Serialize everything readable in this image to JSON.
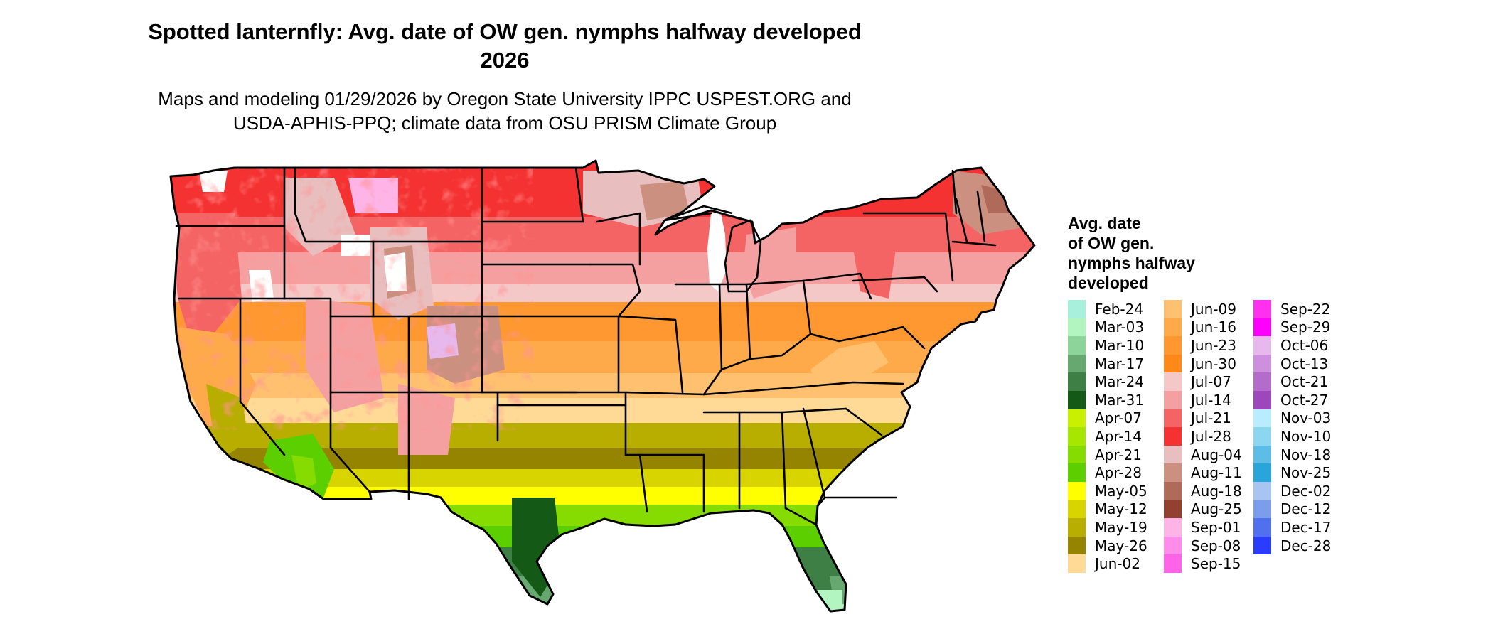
{
  "title": {
    "line1": "Spotted lanternfly: Avg. date of OW gen. nymphs halfway developed",
    "line2": "2026"
  },
  "subtitle": {
    "line1": "Maps and modeling 01/29/2026 by Oregon State University IPPC USPEST.ORG and",
    "line2": "USDA-APHIS-PPQ; climate data from OSU PRISM Climate Group"
  },
  "legend": {
    "title_lines": [
      "Avg. date",
      "of OW gen.",
      "nymphs halfway",
      "developed"
    ],
    "columns": [
      [
        {
          "label": "Feb-24",
          "color": "#a8f0dc"
        },
        {
          "label": "Mar-03",
          "color": "#b2f5c0"
        },
        {
          "label": "Mar-10",
          "color": "#8cd49a"
        },
        {
          "label": "Mar-17",
          "color": "#66a870"
        },
        {
          "label": "Mar-24",
          "color": "#3d7f45"
        },
        {
          "label": "Mar-31",
          "color": "#145a16"
        },
        {
          "label": "Apr-07",
          "color": "#c8f000"
        },
        {
          "label": "Apr-14",
          "color": "#a6e600"
        },
        {
          "label": "Apr-21",
          "color": "#86dc00"
        },
        {
          "label": "Apr-28",
          "color": "#5ccf00"
        },
        {
          "label": "May-05",
          "color": "#ffff00"
        },
        {
          "label": "May-12",
          "color": "#d8d400"
        },
        {
          "label": "May-19",
          "color": "#b8ae00"
        },
        {
          "label": "May-26",
          "color": "#948400"
        },
        {
          "label": "Jun-02",
          "color": "#ffd996"
        }
      ],
      [
        {
          "label": "Jun-09",
          "color": "#ffc070"
        },
        {
          "label": "Jun-16",
          "color": "#ffaa4a"
        },
        {
          "label": "Jun-23",
          "color": "#ff9830"
        },
        {
          "label": "Jun-30",
          "color": "#ff8818"
        },
        {
          "label": "Jul-07",
          "color": "#f5c8c8"
        },
        {
          "label": "Jul-14",
          "color": "#f5a0a0"
        },
        {
          "label": "Jul-21",
          "color": "#f56464"
        },
        {
          "label": "Jul-28",
          "color": "#f53232"
        },
        {
          "label": "Aug-04",
          "color": "#e8bebe"
        },
        {
          "label": "Aug-11",
          "color": "#cc9080"
        },
        {
          "label": "Aug-18",
          "color": "#b06a5a"
        },
        {
          "label": "Aug-25",
          "color": "#944030"
        },
        {
          "label": "Sep-01",
          "color": "#ffb4e8"
        },
        {
          "label": "Sep-08",
          "color": "#ff8ce8"
        },
        {
          "label": "Sep-15",
          "color": "#ff64e8"
        }
      ],
      [
        {
          "label": "Sep-22",
          "color": "#ff30f0"
        },
        {
          "label": "Sep-29",
          "color": "#ff00ff"
        },
        {
          "label": "Oct-06",
          "color": "#e6b8ec"
        },
        {
          "label": "Oct-13",
          "color": "#cc90dc"
        },
        {
          "label": "Oct-21",
          "color": "#b46ccc"
        },
        {
          "label": "Oct-27",
          "color": "#9c48bc"
        },
        {
          "label": "Nov-03",
          "color": "#b8ecff"
        },
        {
          "label": "Nov-10",
          "color": "#8cd6f0"
        },
        {
          "label": "Nov-18",
          "color": "#5cbee6"
        },
        {
          "label": "Nov-25",
          "color": "#28a6dc"
        },
        {
          "label": "Dec-02",
          "color": "#a8c4f0"
        },
        {
          "label": "Dec-12",
          "color": "#7c9cec"
        },
        {
          "label": "Dec-17",
          "color": "#5070f0"
        },
        {
          "label": "Dec-28",
          "color": "#2a3cff"
        }
      ]
    ]
  }
}
